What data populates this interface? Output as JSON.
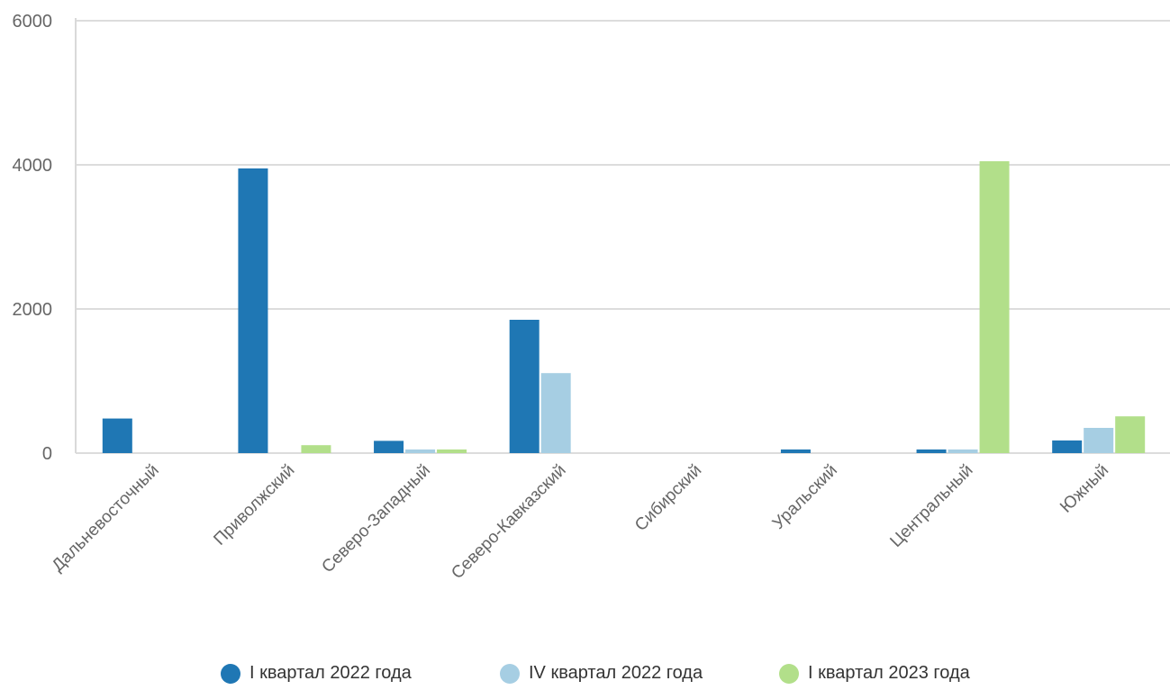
{
  "chart_data": {
    "type": "bar",
    "categories": [
      "Дальневосточный",
      "Приволжский",
      "Северо-Западный",
      "Северо-Кавказский",
      "Сибирский",
      "Уральский",
      "Центральный",
      "Южный"
    ],
    "series": [
      {
        "name": "I квартал 2022 года",
        "color": "#1f77b4",
        "values": [
          480,
          3950,
          170,
          1850,
          0,
          50,
          50,
          175
        ]
      },
      {
        "name": "IV квартал 2022 года",
        "color": "#a6cee3",
        "values": [
          0,
          0,
          50,
          1110,
          0,
          0,
          50,
          350
        ]
      },
      {
        "name": "I квартал 2023 года",
        "color": "#b2df8a",
        "values": [
          0,
          110,
          50,
          0,
          0,
          0,
          4050,
          510
        ]
      }
    ],
    "y_ticks": [
      "0",
      "2000",
      "4000",
      "6000"
    ],
    "ylim": [
      0,
      6000
    ],
    "grid": true,
    "legend_position": "bottom"
  }
}
